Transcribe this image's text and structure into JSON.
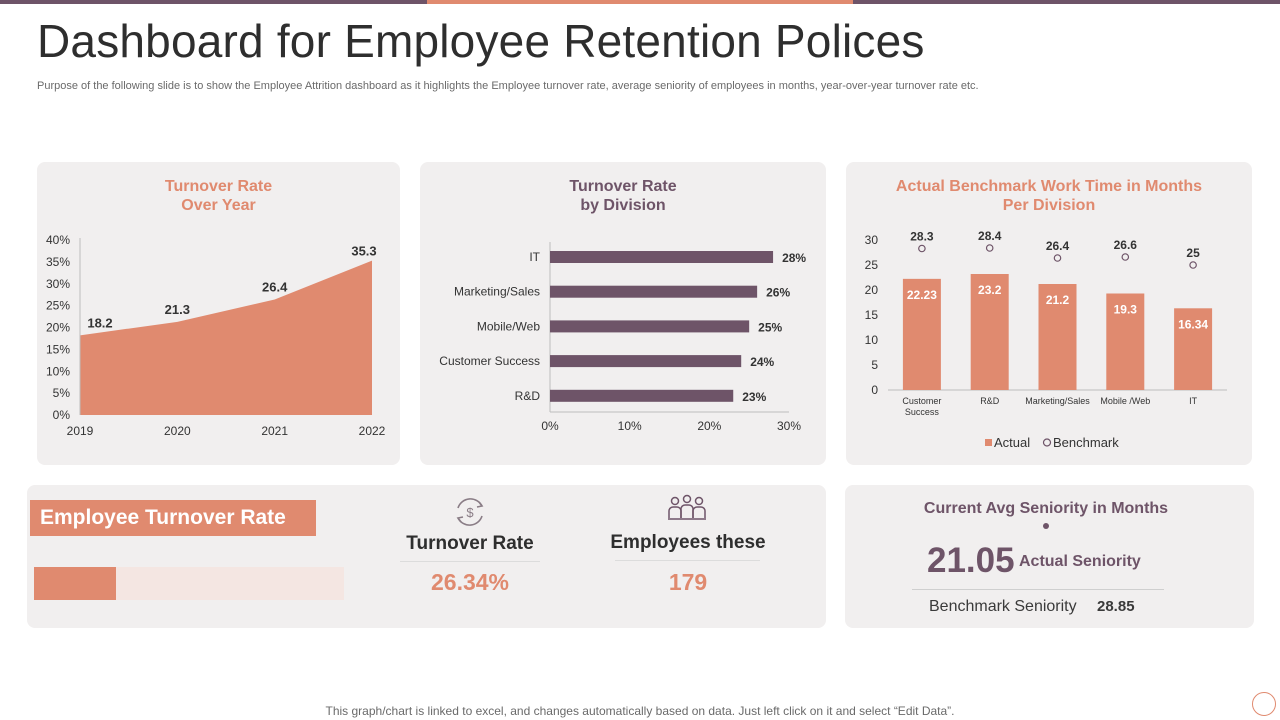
{
  "page": {
    "title": "Dashboard for Employee Retention Polices",
    "subtitle": "Purpose of the following slide is to show the Employee Attrition  dashboard as it highlights the Employee turnover rate, average seniority of employees in months, year-over-year turnover rate etc.",
    "footer": "This graph/chart is linked to excel,  and changes automatically based on data. Just left click on it and select “Edit Data”.",
    "colors": {
      "accent": "#e08a6f",
      "purple": "#6e5468",
      "panel": "#f1efef"
    }
  },
  "chart_data": [
    {
      "type": "area",
      "title_line1": "Turnover Rate",
      "title_line2": "Over Year",
      "x": [
        "2019",
        "2020",
        "2021",
        "2022"
      ],
      "values": [
        18.2,
        21.3,
        26.4,
        35.3
      ],
      "ylim": [
        0,
        40
      ],
      "yticks": [
        "0%",
        "5%",
        "10%",
        "15%",
        "20%",
        "25%",
        "30%",
        "35%",
        "40%"
      ],
      "ytick_values": [
        0,
        5,
        10,
        15,
        20,
        25,
        30,
        35,
        40
      ],
      "data_labels": [
        "18.2",
        "21.3",
        "26.4",
        "35.3"
      ],
      "color": "#e08a6f",
      "grid": false
    },
    {
      "type": "bar",
      "orientation": "horizontal",
      "title_line1": "Turnover Rate",
      "title_line2": "by Division",
      "categories": [
        "IT",
        "Marketing/Sales",
        "Mobile/Web",
        "Customer Success",
        "R&D"
      ],
      "values": [
        28,
        26,
        25,
        24,
        23
      ],
      "data_labels": [
        "28%",
        "26%",
        "25%",
        "24%",
        "23%"
      ],
      "xlim": [
        0,
        30
      ],
      "xticks": [
        "0%",
        "10%",
        "20%",
        "30%"
      ],
      "xtick_values": [
        0,
        10,
        20,
        30
      ],
      "color": "#6e5468",
      "grid": false
    },
    {
      "type": "bar",
      "title_line1": "Actual Benchmark Work Time in Months",
      "title_line2": "Per Division",
      "categories": [
        [
          "Customer",
          "Success"
        ],
        [
          "R&D"
        ],
        [
          "Marketing/Sales"
        ],
        [
          "Mobile /Web"
        ],
        [
          "IT"
        ]
      ],
      "series": [
        {
          "name": "Actual",
          "values": [
            22.23,
            23.2,
            21.2,
            19.3,
            16.34
          ],
          "labels": [
            "22.23",
            "23.2",
            "21.2",
            "19.3",
            "16.34"
          ],
          "color": "#e08a6f",
          "mark": "bar"
        },
        {
          "name": "Benchmark",
          "values": [
            28.3,
            28.4,
            26.4,
            26.6,
            25
          ],
          "labels": [
            "28.3",
            "28.4",
            "26.4",
            "26.6",
            "25"
          ],
          "color": "#6e5468",
          "mark": "circle"
        }
      ],
      "ylim": [
        0,
        30
      ],
      "yticks": [
        "0",
        "5",
        "10",
        "15",
        "20",
        "25",
        "30"
      ],
      "ytick_values": [
        0,
        5,
        10,
        15,
        20,
        25,
        30
      ],
      "legend": {
        "placement": "bottom",
        "actual": "Actual",
        "benchmark": "Benchmark"
      },
      "grid": false
    }
  ],
  "turnover": {
    "box_label": "Employee  Turnover Rate",
    "progress_fraction": 0.2634,
    "turnover_label": "Turnover Rate",
    "turnover_value": "26.34%",
    "employees_label": "Employees these",
    "employees_value": "179",
    "icons": [
      "dollar-cycle-icon",
      "people-group-icon"
    ]
  },
  "seniority": {
    "title": "Current  Avg Seniority  in Months",
    "actual_value": "21.05",
    "actual_label": "Actual  Seniority",
    "benchmark_label": "Benchmark Seniority",
    "benchmark_value": "28.85"
  }
}
